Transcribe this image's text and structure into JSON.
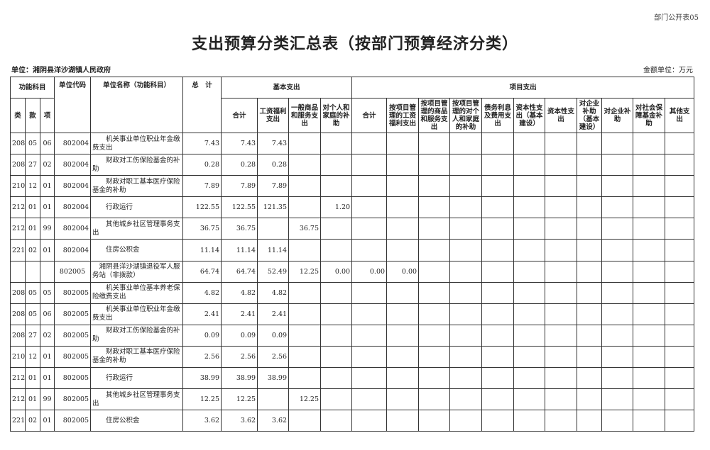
{
  "tag": "部门公开表05",
  "title": "支出预算分类汇总表（按部门预算经济分类）",
  "unit": "单位：湘阴县洋沙湖镇人民政府",
  "money_unit": "金额单位：万元",
  "headers": {
    "func": "功能科目",
    "lei": "类",
    "kuan": "款",
    "xiang": "项",
    "code": "单位代码",
    "name": "单位名称（功能科目）",
    "total": "总　计",
    "basic": "基本支出",
    "project": "项目支出",
    "basic_cols": [
      "合计",
      "工资福利支出",
      "一般商品和服务支出",
      "对个人和家庭的补助"
    ],
    "project_cols": [
      "合计",
      "按项目管理的工资福利支出",
      "按项目管理的商品和服务支出",
      "按项目管理的对个人和家庭的补助",
      "债务利息及费用支出",
      "资本性支出（基本建设）",
      "资本性支出",
      "对企业补助（基本建设）",
      "对企业补助",
      "对社会保障基金补助",
      "其他支出"
    ]
  },
  "rows": [
    [
      "208",
      "05",
      "06",
      "802004",
      "　　机关事业单位职业年金缴费支出",
      "7.43",
      "7.43",
      "7.43",
      "",
      "",
      "",
      "",
      "",
      "",
      "",
      "",
      "",
      "",
      "",
      "",
      ""
    ],
    [
      "208",
      "27",
      "02",
      "802004",
      "　　财政对工伤保险基金的补助",
      "0.28",
      "0.28",
      "0.28",
      "",
      "",
      "",
      "",
      "",
      "",
      "",
      "",
      "",
      "",
      "",
      "",
      ""
    ],
    [
      "210",
      "12",
      "01",
      "802004",
      "　　财政对职工基本医疗保险基金的补助",
      "7.89",
      "7.89",
      "7.89",
      "",
      "",
      "",
      "",
      "",
      "",
      "",
      "",
      "",
      "",
      "",
      "",
      ""
    ],
    [
      "212",
      "01",
      "01",
      "802004",
      "　　行政运行",
      "122.55",
      "122.55",
      "121.35",
      "",
      "1.20",
      "",
      "",
      "",
      "",
      "",
      "",
      "",
      "",
      "",
      "",
      ""
    ],
    [
      "212",
      "01",
      "99",
      "802004",
      "　　其他城乡社区管理事务支出",
      "36.75",
      "36.75",
      "",
      "36.75",
      "",
      "",
      "",
      "",
      "",
      "",
      "",
      "",
      "",
      "",
      "",
      ""
    ],
    [
      "221",
      "02",
      "01",
      "802004",
      "　　住房公积金",
      "11.14",
      "11.14",
      "11.14",
      "",
      "",
      "",
      "",
      "",
      "",
      "",
      "",
      "",
      "",
      "",
      "",
      ""
    ],
    [
      "",
      "",
      "",
      "802005",
      "　湘阴县洋沙湖镇退役军人服务站（非拨款）",
      "64.74",
      "64.74",
      "52.49",
      "12.25",
      "0.00",
      "0.00",
      "0.00",
      "",
      "",
      "",
      "",
      "",
      "",
      "",
      "",
      ""
    ],
    [
      "208",
      "05",
      "05",
      "802005",
      "　　机关事业单位基本养老保险缴费支出",
      "4.82",
      "4.82",
      "4.82",
      "",
      "",
      "",
      "",
      "",
      "",
      "",
      "",
      "",
      "",
      "",
      "",
      ""
    ],
    [
      "208",
      "05",
      "06",
      "802005",
      "　　机关事业单位职业年金缴费支出",
      "2.41",
      "2.41",
      "2.41",
      "",
      "",
      "",
      "",
      "",
      "",
      "",
      "",
      "",
      "",
      "",
      "",
      ""
    ],
    [
      "208",
      "27",
      "02",
      "802005",
      "　　财政对工伤保险基金的补助",
      "0.09",
      "0.09",
      "0.09",
      "",
      "",
      "",
      "",
      "",
      "",
      "",
      "",
      "",
      "",
      "",
      "",
      ""
    ],
    [
      "210",
      "12",
      "01",
      "802005",
      "　　财政对职工基本医疗保险基金的补助",
      "2.56",
      "2.56",
      "2.56",
      "",
      "",
      "",
      "",
      "",
      "",
      "",
      "",
      "",
      "",
      "",
      "",
      ""
    ],
    [
      "212",
      "01",
      "01",
      "802005",
      "　　行政运行",
      "38.99",
      "38.99",
      "38.99",
      "",
      "",
      "",
      "",
      "",
      "",
      "",
      "",
      "",
      "",
      "",
      "",
      ""
    ],
    [
      "212",
      "01",
      "99",
      "802005",
      "　　其他城乡社区管理事务支出",
      "12.25",
      "12.25",
      "",
      "12.25",
      "",
      "",
      "",
      "",
      "",
      "",
      "",
      "",
      "",
      "",
      "",
      ""
    ],
    [
      "221",
      "02",
      "01",
      "802005",
      "　　住房公积金",
      "3.62",
      "3.62",
      "3.62",
      "",
      "",
      "",
      "",
      "",
      "",
      "",
      "",
      "",
      "",
      "",
      "",
      ""
    ]
  ]
}
